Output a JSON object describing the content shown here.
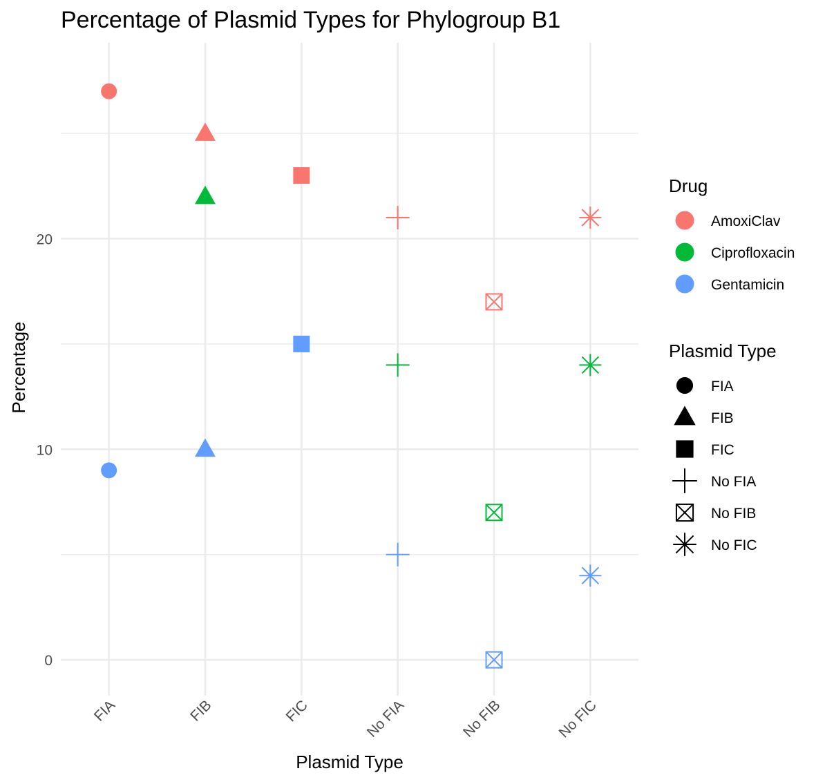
{
  "chart_data": {
    "type": "scatter",
    "title": "Percentage of Plasmid Types for Phylogroup B1",
    "xlabel": "Plasmid Type",
    "ylabel": "Percentage",
    "categories": [
      "FIA",
      "FIB",
      "FIC",
      "No FIA",
      "No FIB",
      "No FIC"
    ],
    "yticks": [
      0,
      10,
      20
    ],
    "ylim": [
      -1.7,
      29.3
    ],
    "grid": true,
    "legend_position": "right",
    "legend_drug_title": "Drug",
    "legend_shape_title": "Plasmid Type",
    "series": [
      {
        "name": "AmoxiClav",
        "color": "#F8766D",
        "values": [
          27,
          25,
          23,
          21,
          17,
          21
        ]
      },
      {
        "name": "Ciprofloxacin",
        "color": "#00BA38",
        "values": [
          null,
          22,
          null,
          14,
          7,
          14
        ]
      },
      {
        "name": "Gentamicin",
        "color": "#619CFF",
        "values": [
          9,
          10,
          15,
          5,
          0,
          4
        ]
      }
    ],
    "shapes": [
      {
        "name": "FIA",
        "shape": "circle"
      },
      {
        "name": "FIB",
        "shape": "triangle"
      },
      {
        "name": "FIC",
        "shape": "square"
      },
      {
        "name": "No FIA",
        "shape": "plus"
      },
      {
        "name": "No FIB",
        "shape": "square-cross"
      },
      {
        "name": "No FIC",
        "shape": "asterisk"
      }
    ]
  }
}
